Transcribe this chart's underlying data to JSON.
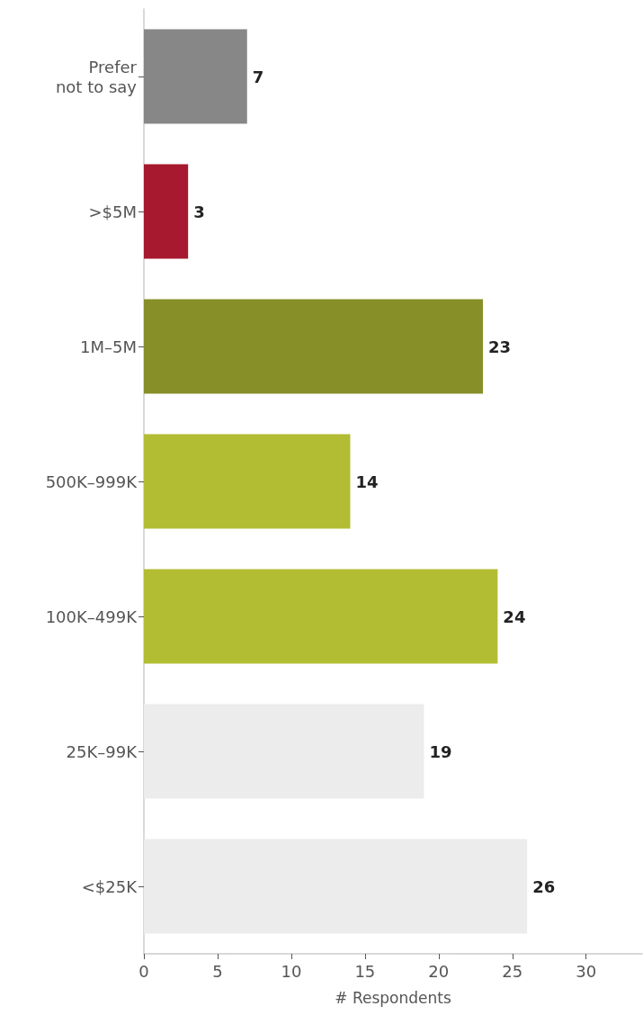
{
  "chart_data": {
    "type": "bar",
    "orientation": "horizontal",
    "xlabel": "# Respondents",
    "categories": [
      "Prefer\nnot to say",
      ">$5M",
      "1M–5M",
      "500K–999K",
      "100K–499K",
      "25K–99K",
      "<$25K"
    ],
    "values": [
      7,
      3,
      23,
      14,
      24,
      19,
      26
    ],
    "colors": [
      "#878787",
      "#a6192e",
      "#879028",
      "#b2bd34",
      "#b2bd34",
      "#ececec",
      "#ececec"
    ],
    "xlim": [
      0,
      33.8
    ],
    "xticks": [
      0,
      5,
      10,
      15,
      20,
      25,
      30
    ],
    "data_labels": true,
    "grid": false
  }
}
